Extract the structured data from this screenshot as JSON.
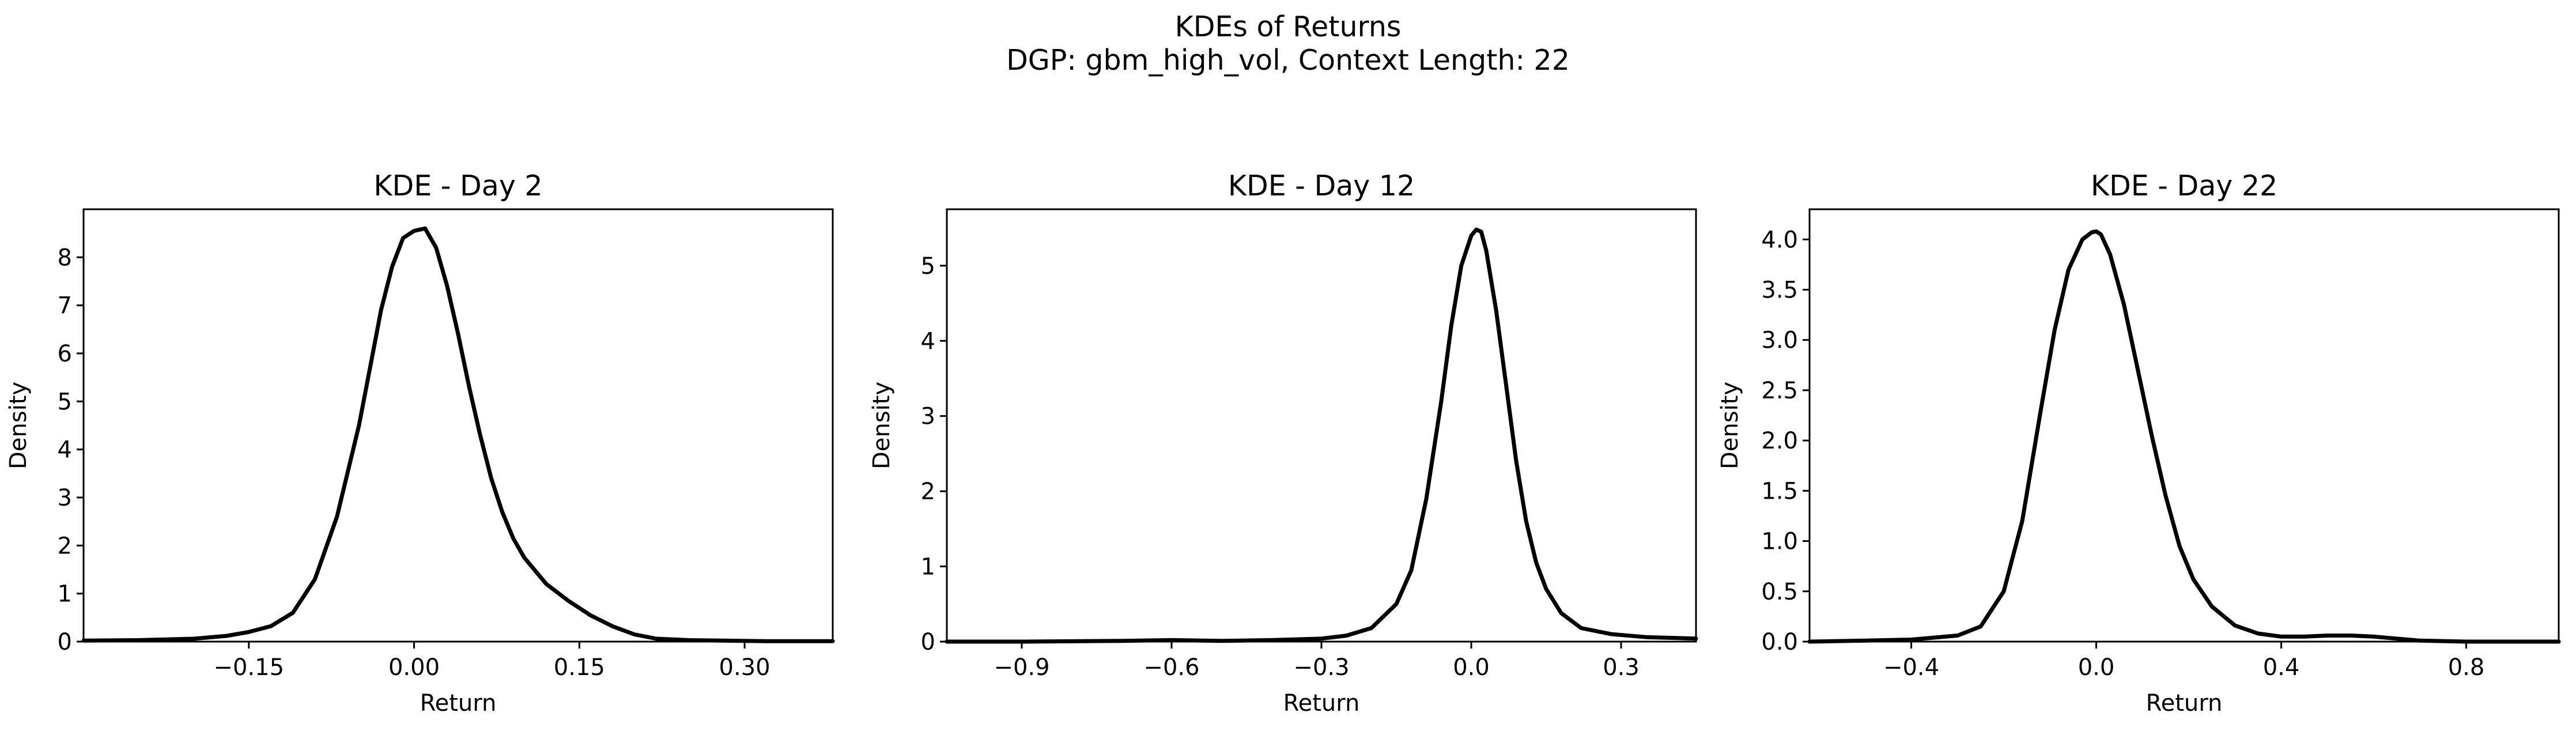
{
  "suptitle": {
    "line1": "KDEs of Returns",
    "line2": "DGP: gbm_high_vol, Context Length: 22"
  },
  "chart_data": [
    {
      "type": "line",
      "title": "KDE - Day 2",
      "xlabel": "Return",
      "ylabel": "Density",
      "xlim": [
        -0.3,
        0.38
      ],
      "ylim": [
        0,
        9.0
      ],
      "xticks": [
        -0.15,
        0.0,
        0.15,
        0.3
      ],
      "xtick_labels": [
        "−0.15",
        "0.00",
        "0.15",
        "0.30"
      ],
      "yticks": [
        0,
        1,
        2,
        3,
        4,
        5,
        6,
        7,
        8
      ],
      "ytick_labels": [
        "0",
        "1",
        "2",
        "3",
        "4",
        "5",
        "6",
        "7",
        "8"
      ],
      "grid": false,
      "series": [
        {
          "color": "#000000",
          "x": [
            -0.3,
            -0.25,
            -0.2,
            -0.17,
            -0.15,
            -0.13,
            -0.11,
            -0.09,
            -0.07,
            -0.05,
            -0.04,
            -0.03,
            -0.02,
            -0.01,
            0.0,
            0.01,
            0.02,
            0.03,
            0.04,
            0.05,
            0.06,
            0.07,
            0.08,
            0.09,
            0.1,
            0.12,
            0.14,
            0.16,
            0.18,
            0.2,
            0.22,
            0.25,
            0.28,
            0.32,
            0.38
          ],
          "y": [
            0.02,
            0.03,
            0.06,
            0.12,
            0.2,
            0.32,
            0.6,
            1.3,
            2.6,
            4.5,
            5.7,
            6.9,
            7.8,
            8.4,
            8.55,
            8.6,
            8.2,
            7.4,
            6.4,
            5.3,
            4.3,
            3.4,
            2.7,
            2.15,
            1.75,
            1.2,
            0.85,
            0.55,
            0.32,
            0.15,
            0.06,
            0.03,
            0.02,
            0.01,
            0.01
          ]
        }
      ]
    },
    {
      "type": "line",
      "title": "KDE - Day 12",
      "xlabel": "Return",
      "ylabel": "Density",
      "xlim": [
        -1.05,
        0.45
      ],
      "ylim": [
        0,
        5.75
      ],
      "xticks": [
        -0.9,
        -0.6,
        -0.3,
        0.0,
        0.3
      ],
      "xtick_labels": [
        "−0.9",
        "−0.6",
        "−0.3",
        "0.0",
        "0.3"
      ],
      "yticks": [
        0,
        1,
        2,
        3,
        4,
        5
      ],
      "ytick_labels": [
        "0",
        "1",
        "2",
        "3",
        "4",
        "5"
      ],
      "grid": false,
      "series": [
        {
          "color": "#000000",
          "x": [
            -1.05,
            -0.9,
            -0.7,
            -0.6,
            -0.5,
            -0.4,
            -0.3,
            -0.25,
            -0.2,
            -0.15,
            -0.12,
            -0.09,
            -0.06,
            -0.04,
            -0.02,
            0.0,
            0.01,
            0.02,
            0.03,
            0.05,
            0.07,
            0.09,
            0.11,
            0.13,
            0.15,
            0.18,
            0.22,
            0.28,
            0.35,
            0.45
          ],
          "y": [
            0.0,
            0.0,
            0.01,
            0.02,
            0.01,
            0.02,
            0.04,
            0.08,
            0.18,
            0.5,
            0.95,
            1.9,
            3.2,
            4.2,
            5.0,
            5.4,
            5.48,
            5.45,
            5.2,
            4.4,
            3.4,
            2.4,
            1.6,
            1.05,
            0.7,
            0.38,
            0.18,
            0.1,
            0.06,
            0.04
          ]
        }
      ]
    },
    {
      "type": "line",
      "title": "KDE - Day 22",
      "xlabel": "Return",
      "ylabel": "Density",
      "xlim": [
        -0.62,
        1.0
      ],
      "ylim": [
        0,
        4.3
      ],
      "xticks": [
        -0.4,
        0.0,
        0.4,
        0.8
      ],
      "xtick_labels": [
        "−0.4",
        "0.0",
        "0.4",
        "0.8"
      ],
      "yticks": [
        0.0,
        0.5,
        1.0,
        1.5,
        2.0,
        2.5,
        3.0,
        3.5,
        4.0
      ],
      "ytick_labels": [
        "0.0",
        "0.5",
        "1.0",
        "1.5",
        "2.0",
        "2.5",
        "3.0",
        "3.5",
        "4.0"
      ],
      "grid": false,
      "series": [
        {
          "color": "#000000",
          "x": [
            -0.62,
            -0.5,
            -0.4,
            -0.3,
            -0.25,
            -0.2,
            -0.16,
            -0.12,
            -0.09,
            -0.06,
            -0.03,
            -0.01,
            0.0,
            0.01,
            0.03,
            0.06,
            0.09,
            0.12,
            0.15,
            0.18,
            0.21,
            0.25,
            0.3,
            0.35,
            0.4,
            0.45,
            0.5,
            0.55,
            0.6,
            0.65,
            0.7,
            0.8,
            1.0
          ],
          "y": [
            0.0,
            0.01,
            0.02,
            0.06,
            0.15,
            0.5,
            1.2,
            2.3,
            3.1,
            3.7,
            4.0,
            4.07,
            4.08,
            4.05,
            3.85,
            3.35,
            2.7,
            2.05,
            1.45,
            0.95,
            0.62,
            0.35,
            0.16,
            0.08,
            0.05,
            0.05,
            0.06,
            0.06,
            0.05,
            0.03,
            0.01,
            0.0,
            0.0
          ]
        }
      ]
    }
  ]
}
